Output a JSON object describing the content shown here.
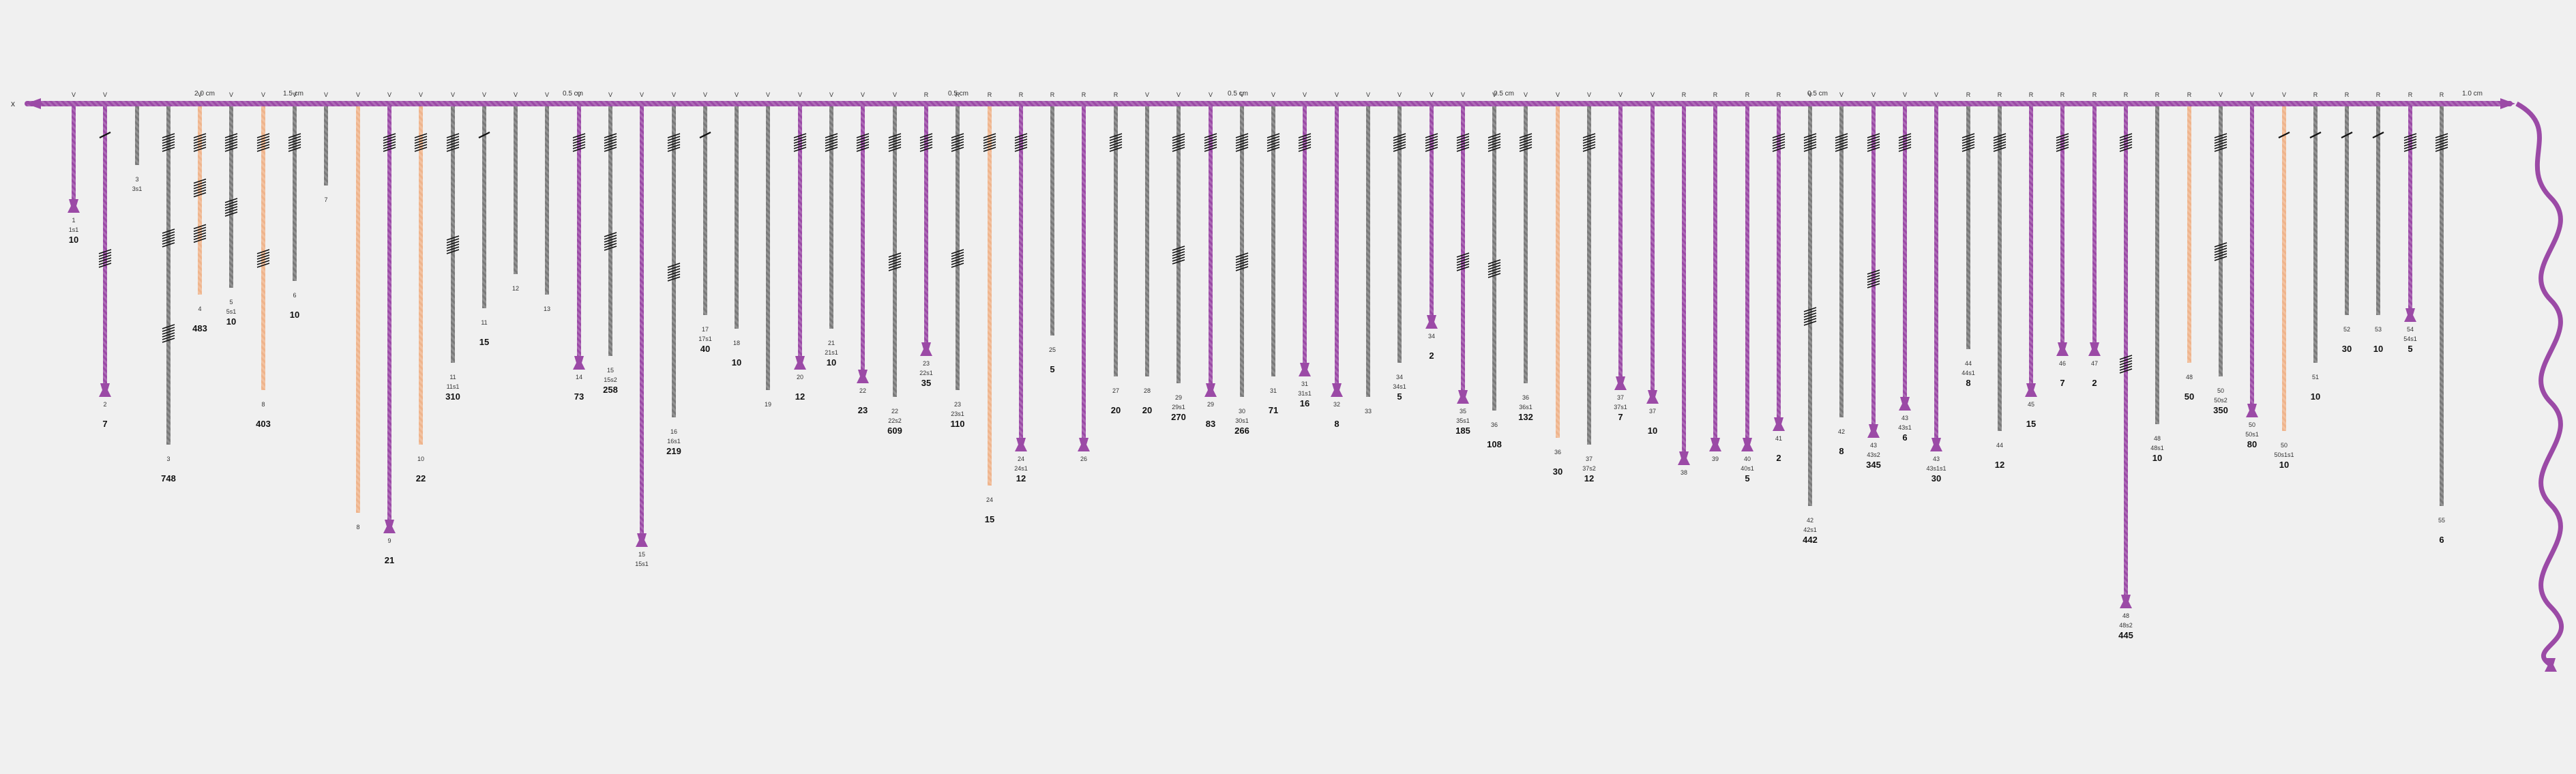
{
  "diagram": {
    "colors": {
      "primary": "#9b4aa6",
      "secondary": "#7a7a7a",
      "tertiary": "#efb48c",
      "knot": "#111111",
      "background": "#f0f0f0"
    },
    "top_cord": {
      "label": "x"
    },
    "spacings": [
      "2.0 cm",
      "1.5 cm",
      "0.5 cm",
      "0.5 cm",
      "0.5 cm",
      "0.5 cm",
      "0.5 cm",
      "1.0 cm"
    ],
    "cords": [
      {
        "id": "1",
        "ply": "V",
        "color": "primary",
        "knots": [],
        "value": "10",
        "sub": "1s1"
      },
      {
        "id": "2",
        "ply": "V",
        "color": "primary",
        "knots": [
          "short",
          "long"
        ],
        "value": "7",
        "sub": ""
      },
      {
        "id": "3",
        "ply": "",
        "color": "secondary",
        "knots": [],
        "value": "",
        "sub": "3s1"
      },
      {
        "id": "3",
        "ply": "",
        "color": "secondary",
        "knots": [
          "long",
          "long",
          "long"
        ],
        "value": "748",
        "sub": ""
      },
      {
        "id": "4",
        "ply": "V",
        "color": "tertiary",
        "knots": [
          "long",
          "long",
          "long"
        ],
        "value": "483",
        "sub": ""
      },
      {
        "id": "5",
        "ply": "V",
        "color": "secondary",
        "knots": [
          "long",
          "long"
        ],
        "value": "10",
        "sub": "5s1"
      },
      {
        "id": "8",
        "ply": "V",
        "color": "tertiary",
        "knots": [
          "long",
          "long"
        ],
        "value": "403",
        "sub": ""
      },
      {
        "id": "6",
        "ply": "V",
        "color": "secondary",
        "knots": [
          "long"
        ],
        "value": "10",
        "sub": ""
      },
      {
        "id": "7",
        "ply": "V",
        "color": "secondary",
        "knots": [],
        "value": "",
        "sub": ""
      },
      {
        "id": "8",
        "ply": "V",
        "color": "tertiary",
        "knots": [],
        "value": "",
        "sub": ""
      },
      {
        "id": "9",
        "ply": "V",
        "color": "primary",
        "knots": [
          "long"
        ],
        "value": "21",
        "sub": ""
      },
      {
        "id": "10",
        "ply": "V",
        "color": "tertiary",
        "knots": [
          "long"
        ],
        "value": "22",
        "sub": ""
      },
      {
        "id": "11",
        "ply": "V",
        "color": "secondary",
        "knots": [
          "long",
          "long"
        ],
        "value": "310",
        "sub": "11s1"
      },
      {
        "id": "11",
        "ply": "V",
        "color": "secondary",
        "knots": [
          "short"
        ],
        "value": "15",
        "sub": ""
      },
      {
        "id": "12",
        "ply": "V",
        "color": "secondary",
        "knots": [],
        "value": "",
        "sub": ""
      },
      {
        "id": "13",
        "ply": "V",
        "color": "secondary",
        "knots": [],
        "value": "",
        "sub": ""
      },
      {
        "id": "14",
        "ply": "V",
        "color": "primary",
        "knots": [
          "long"
        ],
        "value": "73",
        "sub": ""
      },
      {
        "id": "15",
        "ply": "V",
        "color": "secondary",
        "knots": [
          "long",
          "long"
        ],
        "value": "258",
        "sub": "15s2"
      },
      {
        "id": "15",
        "ply": "V",
        "color": "primary",
        "knots": [],
        "value": "",
        "sub": "15s1"
      },
      {
        "id": "16",
        "ply": "V",
        "color": "secondary",
        "knots": [
          "long",
          "long"
        ],
        "value": "219",
        "sub": "16s1"
      },
      {
        "id": "17",
        "ply": "V",
        "color": "secondary",
        "knots": [
          "short"
        ],
        "value": "40",
        "sub": "17s1"
      },
      {
        "id": "18",
        "ply": "V",
        "color": "secondary",
        "knots": [],
        "value": "10",
        "sub": ""
      },
      {
        "id": "19",
        "ply": "V",
        "color": "secondary",
        "knots": [],
        "value": "",
        "sub": ""
      },
      {
        "id": "20",
        "ply": "V",
        "color": "primary",
        "knots": [
          "long"
        ],
        "value": "12",
        "sub": ""
      },
      {
        "id": "21",
        "ply": "V",
        "color": "secondary",
        "knots": [
          "long"
        ],
        "value": "10",
        "sub": "21s1"
      },
      {
        "id": "22",
        "ply": "V",
        "color": "primary",
        "knots": [
          "long"
        ],
        "value": "23",
        "sub": ""
      },
      {
        "id": "22",
        "ply": "V",
        "color": "secondary",
        "knots": [
          "long",
          "long"
        ],
        "value": "609",
        "sub": "22s2"
      },
      {
        "id": "23",
        "ply": "R",
        "color": "primary",
        "knots": [
          "long"
        ],
        "value": "35",
        "sub": "22s1"
      },
      {
        "id": "23",
        "ply": "R",
        "color": "secondary",
        "knots": [
          "long",
          "long"
        ],
        "value": "110",
        "sub": "23s1"
      },
      {
        "id": "24",
        "ply": "R",
        "color": "tertiary",
        "knots": [
          "long"
        ],
        "value": "15",
        "sub": ""
      },
      {
        "id": "24",
        "ply": "R",
        "color": "primary",
        "knots": [
          "long"
        ],
        "value": "12",
        "sub": "24s1"
      },
      {
        "id": "25",
        "ply": "R",
        "color": "secondary",
        "knots": [],
        "value": "5",
        "sub": ""
      },
      {
        "id": "26",
        "ply": "R",
        "color": "primary",
        "knots": [],
        "value": "",
        "sub": ""
      },
      {
        "id": "27",
        "ply": "R",
        "color": "secondary",
        "knots": [
          "long"
        ],
        "value": "20",
        "sub": ""
      },
      {
        "id": "28",
        "ply": "V",
        "color": "secondary",
        "knots": [],
        "value": "20",
        "sub": ""
      },
      {
        "id": "29",
        "ply": "V",
        "color": "secondary",
        "knots": [
          "long",
          "long"
        ],
        "value": "270",
        "sub": "29s1"
      },
      {
        "id": "29",
        "ply": "V",
        "color": "primary",
        "knots": [
          "long"
        ],
        "value": "83",
        "sub": ""
      },
      {
        "id": "30",
        "ply": "V",
        "color": "secondary",
        "knots": [
          "long",
          "long"
        ],
        "value": "266",
        "sub": "30s1"
      },
      {
        "id": "31",
        "ply": "V",
        "color": "secondary",
        "knots": [
          "long"
        ],
        "value": "71",
        "sub": ""
      },
      {
        "id": "31",
        "ply": "V",
        "color": "primary",
        "knots": [
          "long"
        ],
        "value": "16",
        "sub": "31s1"
      },
      {
        "id": "32",
        "ply": "V",
        "color": "primary",
        "knots": [],
        "value": "8",
        "sub": ""
      },
      {
        "id": "33",
        "ply": "V",
        "color": "secondary",
        "knots": [],
        "value": "",
        "sub": ""
      },
      {
        "id": "34",
        "ply": "V",
        "color": "secondary",
        "knots": [
          "long"
        ],
        "value": "5",
        "sub": "34s1"
      },
      {
        "id": "34",
        "ply": "V",
        "color": "primary",
        "knots": [
          "long"
        ],
        "value": "2",
        "sub": ""
      },
      {
        "id": "35",
        "ply": "V",
        "color": "primary",
        "knots": [
          "long",
          "long"
        ],
        "value": "185",
        "sub": "35s1"
      },
      {
        "id": "36",
        "ply": "V",
        "color": "secondary",
        "knots": [
          "long",
          "long"
        ],
        "value": "108",
        "sub": ""
      },
      {
        "id": "36",
        "ply": "V",
        "color": "secondary",
        "knots": [
          "long"
        ],
        "value": "132",
        "sub": "36s1"
      },
      {
        "id": "36",
        "ply": "V",
        "color": "tertiary",
        "knots": [],
        "value": "30",
        "sub": ""
      },
      {
        "id": "37",
        "ply": "V",
        "color": "secondary",
        "knots": [
          "long"
        ],
        "value": "12",
        "sub": "37s2"
      },
      {
        "id": "37",
        "ply": "V",
        "color": "primary",
        "knots": [],
        "value": "7",
        "sub": "37s1"
      },
      {
        "id": "37",
        "ply": "V",
        "color": "primary",
        "knots": [],
        "value": "10",
        "sub": ""
      },
      {
        "id": "38",
        "ply": "R",
        "color": "primary",
        "knots": [],
        "value": "",
        "sub": ""
      },
      {
        "id": "39",
        "ply": "R",
        "color": "primary",
        "knots": [],
        "value": "",
        "sub": ""
      },
      {
        "id": "40",
        "ply": "R",
        "color": "primary",
        "knots": [],
        "value": "5",
        "sub": "40s1"
      },
      {
        "id": "41",
        "ply": "R",
        "color": "primary",
        "knots": [
          "long"
        ],
        "value": "2",
        "sub": ""
      },
      {
        "id": "42",
        "ply": "V",
        "color": "secondary",
        "knots": [
          "long",
          "long"
        ],
        "value": "442",
        "sub": "42s1"
      },
      {
        "id": "42",
        "ply": "V",
        "color": "secondary",
        "knots": [
          "long"
        ],
        "value": "8",
        "sub": ""
      },
      {
        "id": "43",
        "ply": "V",
        "color": "primary",
        "knots": [
          "long",
          "long"
        ],
        "value": "345",
        "sub": "43s2"
      },
      {
        "id": "43",
        "ply": "V",
        "color": "primary",
        "knots": [
          "long"
        ],
        "value": "6",
        "sub": "43s1"
      },
      {
        "id": "43",
        "ply": "V",
        "color": "primary",
        "knots": [],
        "value": "30",
        "sub": "43s1s1"
      },
      {
        "id": "44",
        "ply": "R",
        "color": "secondary",
        "knots": [
          "long"
        ],
        "value": "8",
        "sub": "44s1"
      },
      {
        "id": "44",
        "ply": "R",
        "color": "secondary",
        "knots": [
          "long"
        ],
        "value": "12",
        "sub": ""
      },
      {
        "id": "45",
        "ply": "R",
        "color": "primary",
        "knots": [],
        "value": "15",
        "sub": ""
      },
      {
        "id": "46",
        "ply": "R",
        "color": "primary",
        "knots": [
          "long"
        ],
        "value": "7",
        "sub": ""
      },
      {
        "id": "47",
        "ply": "R",
        "color": "primary",
        "knots": [],
        "value": "2",
        "sub": ""
      },
      {
        "id": "48",
        "ply": "R",
        "color": "primary",
        "knots": [
          "long",
          "long"
        ],
        "value": "445",
        "sub": "48s2"
      },
      {
        "id": "48",
        "ply": "R",
        "color": "secondary",
        "knots": [],
        "value": "10",
        "sub": "48s1"
      },
      {
        "id": "48",
        "ply": "R",
        "color": "tertiary",
        "knots": [],
        "value": "50",
        "sub": ""
      },
      {
        "id": "50",
        "ply": "V",
        "color": "secondary",
        "knots": [
          "long",
          "long"
        ],
        "value": "350",
        "sub": "50s2"
      },
      {
        "id": "50",
        "ply": "V",
        "color": "primary",
        "knots": [],
        "value": "80",
        "sub": "50s1"
      },
      {
        "id": "50",
        "ply": "V",
        "color": "tertiary",
        "knots": [
          "short"
        ],
        "value": "10",
        "sub": "50s1s1"
      },
      {
        "id": "51",
        "ply": "R",
        "color": "secondary",
        "knots": [
          "short"
        ],
        "value": "10",
        "sub": ""
      },
      {
        "id": "52",
        "ply": "R",
        "color": "secondary",
        "knots": [
          "short"
        ],
        "value": "30",
        "sub": ""
      },
      {
        "id": "53",
        "ply": "R",
        "color": "secondary",
        "knots": [
          "short"
        ],
        "value": "10",
        "sub": ""
      },
      {
        "id": "54",
        "ply": "R",
        "color": "primary",
        "knots": [
          "long"
        ],
        "value": "5",
        "sub": "54s1"
      },
      {
        "id": "55",
        "ply": "R",
        "color": "secondary",
        "knots": [
          "long"
        ],
        "value": "6",
        "sub": ""
      }
    ]
  }
}
